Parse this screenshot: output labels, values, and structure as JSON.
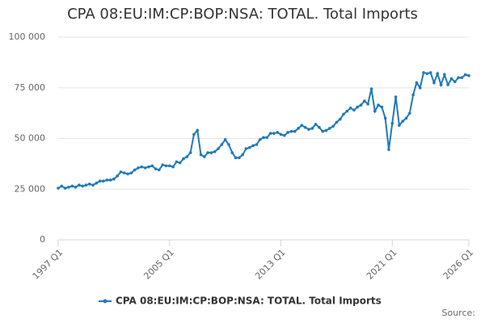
{
  "chart_data": {
    "type": "line",
    "title": "CPA 08:EU:IM:CP:BOP:NSA: TOTAL. Total Imports",
    "source": "Source:",
    "categories": [
      "1997 Q1",
      null,
      null,
      null,
      null,
      null,
      null,
      null,
      null,
      null,
      null,
      null,
      null,
      null,
      null,
      null,
      null,
      null,
      null,
      null,
      null,
      null,
      null,
      null,
      null,
      null,
      null,
      null,
      null,
      null,
      null,
      null,
      "2005 Q1",
      null,
      null,
      null,
      null,
      null,
      null,
      null,
      null,
      null,
      null,
      null,
      null,
      null,
      null,
      null,
      null,
      null,
      null,
      null,
      null,
      null,
      null,
      null,
      null,
      null,
      null,
      null,
      null,
      null,
      null,
      null,
      "2013 Q1",
      null,
      null,
      null,
      null,
      null,
      null,
      null,
      null,
      null,
      null,
      null,
      null,
      null,
      null,
      null,
      null,
      null,
      null,
      null,
      null,
      null,
      null,
      null,
      null,
      null,
      null,
      null,
      null,
      null,
      null,
      null,
      "2021 Q1",
      null,
      null,
      null,
      null,
      null,
      null,
      null,
      null,
      null,
      null,
      null,
      null,
      null,
      null,
      null,
      null,
      null,
      null,
      null,
      null,
      null,
      "2026 Q1"
    ],
    "series": [
      {
        "name": "CPA 08:EU:IM:CP:BOP:NSA: TOTAL. Total Imports",
        "color": "#1f7ab8",
        "values": [
          25500,
          26500,
          25500,
          26000,
          26500,
          26000,
          27000,
          26500,
          27000,
          27500,
          27000,
          28000,
          29000,
          29000,
          29500,
          29500,
          30000,
          31500,
          33500,
          33000,
          32500,
          33000,
          34500,
          35500,
          36000,
          35500,
          36000,
          36500,
          35000,
          34500,
          37000,
          36500,
          36500,
          36000,
          38500,
          38000,
          40000,
          41000,
          43000,
          52000,
          54000,
          42000,
          41000,
          43000,
          43000,
          43500,
          45000,
          47000,
          49500,
          47000,
          43000,
          40500,
          40500,
          42000,
          45000,
          45500,
          46500,
          47000,
          49500,
          50500,
          50500,
          52500,
          52500,
          53000,
          52000,
          51500,
          53000,
          53500,
          53500,
          55000,
          56500,
          55500,
          54500,
          55000,
          57000,
          55500,
          53500,
          54000,
          55000,
          56000,
          58000,
          59500,
          62000,
          63500,
          65000,
          64000,
          65500,
          66500,
          68500,
          67000,
          74500,
          63500,
          66500,
          65500,
          60000,
          44500,
          57500,
          70500,
          56500,
          58500,
          60000,
          62500,
          71500,
          77500,
          75000,
          82500,
          82000,
          82500,
          77500,
          82000,
          76500,
          81500,
          76500,
          79500,
          78000,
          80000,
          80000,
          81500,
          81000
        ]
      }
    ],
    "ylim": [
      0,
      100000
    ],
    "yticks": [
      0,
      {
        "value": 25000,
        "label": "25 000"
      },
      {
        "value": 50000,
        "label": "50 000"
      },
      {
        "value": 75000,
        "label": "75 000"
      },
      {
        "value": 100000,
        "label": "100 000"
      }
    ],
    "grid": true
  }
}
